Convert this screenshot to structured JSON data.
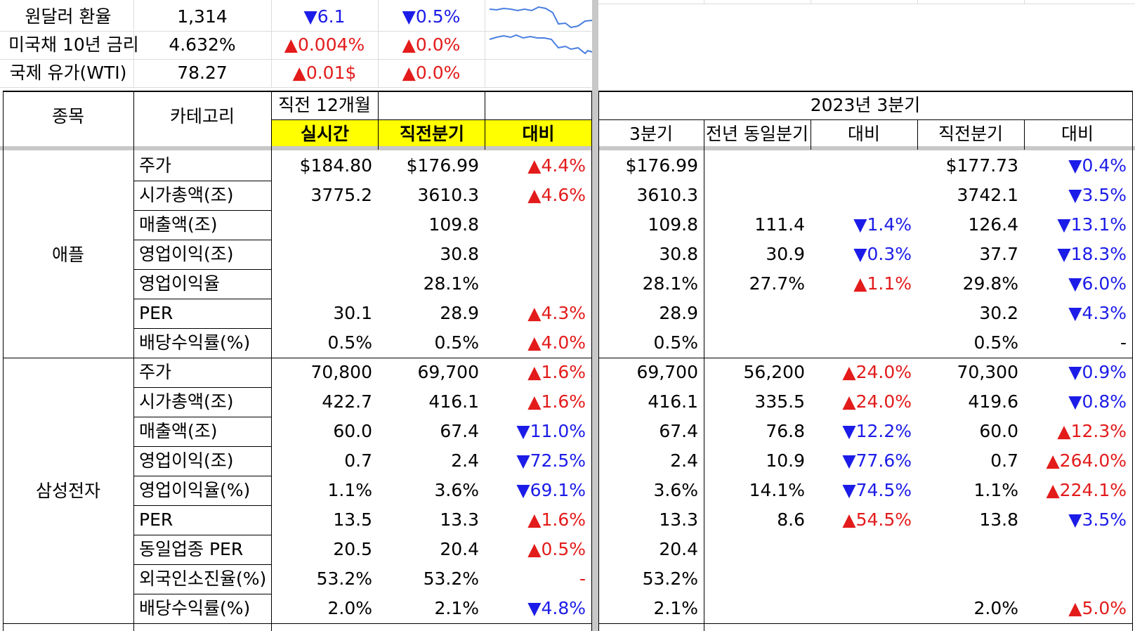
{
  "top": [
    {
      "label": "원달러 환율",
      "value": "1,314",
      "chg1": "▼6.1",
      "chg1_dir": "down",
      "chg2": "▼0.5%",
      "chg2_dir": "down"
    },
    {
      "label": "미국채 10년 금리",
      "value": "4.632%",
      "chg1": "▲0.004%",
      "chg1_dir": "up",
      "chg2": "▲0.0%",
      "chg2_dir": "up"
    },
    {
      "label": "국제 유가(WTI)",
      "value": "78.27",
      "chg1": "▲0.01$",
      "chg1_dir": "up",
      "chg2": "▲0.0%",
      "chg2_dir": "up"
    }
  ],
  "header": {
    "stock": "종목",
    "category": "카테고리",
    "prev12": "직전 12개월",
    "realtime": "실시간",
    "prev_quarter": "직전분기",
    "compare": "대비",
    "q_title": "2023년 3분기",
    "q3": "3분기",
    "yoy_quarter": "전년 동일분기",
    "compare2": "대비",
    "prev_quarter2": "직전분기",
    "compare3": "대비"
  },
  "groups": [
    {
      "name": "애플",
      "rows": [
        {
          "cat": "주가",
          "rt": "$184.80",
          "pq": "$176.99",
          "cmp": "▲4.4%",
          "cmp_dir": "up",
          "q3": "$176.99",
          "yoy": "",
          "cmp2": "",
          "cmp2_dir": "",
          "pq2": "$177.73",
          "cmp3": "▼0.4%",
          "cmp3_dir": "down"
        },
        {
          "cat": "시가총액(조)",
          "rt": "3775.2",
          "pq": "3610.3",
          "cmp": "▲4.6%",
          "cmp_dir": "up",
          "q3": "3610.3",
          "yoy": "",
          "cmp2": "",
          "cmp2_dir": "",
          "pq2": "3742.1",
          "cmp3": "▼3.5%",
          "cmp3_dir": "down"
        },
        {
          "cat": "매출액(조)",
          "rt": "",
          "pq": "109.8",
          "cmp": "",
          "cmp_dir": "",
          "q3": "109.8",
          "yoy": "111.4",
          "cmp2": "▼1.4%",
          "cmp2_dir": "down",
          "pq2": "126.4",
          "cmp3": "▼13.1%",
          "cmp3_dir": "down"
        },
        {
          "cat": "영업이익(조)",
          "rt": "",
          "pq": "30.8",
          "cmp": "",
          "cmp_dir": "",
          "q3": "30.8",
          "yoy": "30.9",
          "cmp2": "▼0.3%",
          "cmp2_dir": "down",
          "pq2": "37.7",
          "cmp3": "▼18.3%",
          "cmp3_dir": "down"
        },
        {
          "cat": "영업이익율",
          "rt": "",
          "pq": "28.1%",
          "cmp": "",
          "cmp_dir": "",
          "q3": "28.1%",
          "yoy": "27.7%",
          "cmp2": "▲1.1%",
          "cmp2_dir": "up",
          "pq2": "29.8%",
          "cmp3": "▼6.0%",
          "cmp3_dir": "down"
        },
        {
          "cat": "PER",
          "rt": "30.1",
          "pq": "28.9",
          "cmp": "▲4.3%",
          "cmp_dir": "up",
          "q3": "28.9",
          "yoy": "",
          "cmp2": "",
          "cmp2_dir": "",
          "pq2": "30.2",
          "cmp3": "▼4.3%",
          "cmp3_dir": "down"
        },
        {
          "cat": "배당수익률(%)",
          "rt": "0.5%",
          "pq": "0.5%",
          "cmp": "▲4.0%",
          "cmp_dir": "up",
          "q3": "0.5%",
          "yoy": "",
          "cmp2": "",
          "cmp2_dir": "",
          "pq2": "0.5%",
          "cmp3": "-",
          "cmp3_dir": ""
        }
      ]
    },
    {
      "name": "삼성전자",
      "rows": [
        {
          "cat": "주가",
          "rt": "70,800",
          "pq": "69,700",
          "cmp": "▲1.6%",
          "cmp_dir": "up",
          "q3": "69,700",
          "yoy": "56,200",
          "cmp2": "▲24.0%",
          "cmp2_dir": "up",
          "pq2": "70,300",
          "cmp3": "▼0.9%",
          "cmp3_dir": "down"
        },
        {
          "cat": "시가총액(조)",
          "rt": "422.7",
          "pq": "416.1",
          "cmp": "▲1.6%",
          "cmp_dir": "up",
          "q3": "416.1",
          "yoy": "335.5",
          "cmp2": "▲24.0%",
          "cmp2_dir": "up",
          "pq2": "419.6",
          "cmp3": "▼0.8%",
          "cmp3_dir": "down"
        },
        {
          "cat": "매출액(조)",
          "rt": "60.0",
          "pq": "67.4",
          "cmp": "▼11.0%",
          "cmp_dir": "down",
          "q3": "67.4",
          "yoy": "76.8",
          "cmp2": "▼12.2%",
          "cmp2_dir": "down",
          "pq2": "60.0",
          "cmp3": "▲12.3%",
          "cmp3_dir": "up"
        },
        {
          "cat": "영업이익(조)",
          "rt": "0.7",
          "pq": "2.4",
          "cmp": "▼72.5%",
          "cmp_dir": "down",
          "q3": "2.4",
          "yoy": "10.9",
          "cmp2": "▼77.6%",
          "cmp2_dir": "down",
          "pq2": "0.7",
          "cmp3": "▲264.0%",
          "cmp3_dir": "up"
        },
        {
          "cat": "영업이익율(%)",
          "rt": "1.1%",
          "pq": "3.6%",
          "cmp": "▼69.1%",
          "cmp_dir": "down",
          "q3": "3.6%",
          "yoy": "14.1%",
          "cmp2": "▼74.5%",
          "cmp2_dir": "down",
          "pq2": "1.1%",
          "cmp3": "▲224.1%",
          "cmp3_dir": "up"
        },
        {
          "cat": "PER",
          "rt": "13.5",
          "pq": "13.3",
          "cmp": "▲1.6%",
          "cmp_dir": "up",
          "q3": "13.3",
          "yoy": "8.6",
          "cmp2": "▲54.5%",
          "cmp2_dir": "up",
          "pq2": "13.8",
          "cmp3": "▼3.5%",
          "cmp3_dir": "down"
        },
        {
          "cat": "동일업종 PER",
          "rt": "20.5",
          "pq": "20.4",
          "cmp": "▲0.5%",
          "cmp_dir": "up",
          "q3": "20.4",
          "yoy": "",
          "cmp2": "",
          "cmp2_dir": "",
          "pq2": "",
          "cmp3": "",
          "cmp3_dir": ""
        },
        {
          "cat": "외국인소진율(%)",
          "rt": "53.2%",
          "pq": "53.2%",
          "cmp": "-",
          "cmp_dir": "up",
          "q3": "53.2%",
          "yoy": "",
          "cmp2": "",
          "cmp2_dir": "",
          "pq2": "",
          "cmp3": "",
          "cmp3_dir": ""
        },
        {
          "cat": "배당수익률(%)",
          "rt": "2.0%",
          "pq": "2.1%",
          "cmp": "▼4.8%",
          "cmp_dir": "down",
          "q3": "2.1%",
          "yoy": "",
          "cmp2": "",
          "cmp2_dir": "",
          "pq2": "2.0%",
          "cmp3": "▲5.0%",
          "cmp3_dir": "up"
        }
      ]
    }
  ],
  "colors": {
    "up": "#e31b1b",
    "down": "#1c1ce8",
    "highlight": "#ffff00",
    "sparkline": "#4a7fe0"
  }
}
